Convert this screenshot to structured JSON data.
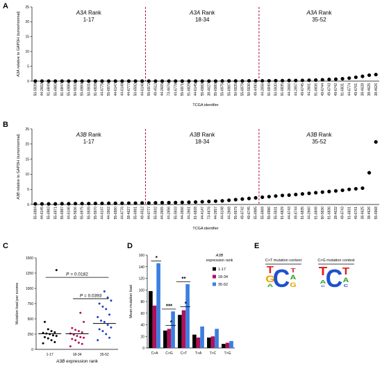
{
  "figure": {
    "panel_labels": [
      "A",
      "B",
      "C",
      "D",
      "E"
    ]
  },
  "chart_data": [
    {
      "id": "A",
      "type": "scatter",
      "ylabel_gene": "A3A",
      "ylabel_rest": " relative to GAPDH (tumor/normal)",
      "xlabel": "TCGA identifier",
      "ylim": [
        0,
        25
      ],
      "yticks": [
        0,
        5,
        10,
        15,
        20,
        25
      ],
      "x": [
        "50-5939",
        "44-2662",
        "91-6849",
        "55-6983",
        "91-6847",
        "55-6986",
        "50-5932",
        "55-6984",
        "50-5931",
        "91-6828",
        "44-6775",
        "55-6970",
        "44-6147",
        "44-6148",
        "44-6777",
        "50-6592",
        "44-6146",
        "55-6972",
        "49-4512",
        "44-2665",
        "73-4676",
        "44-6778",
        "55-6971",
        "91-6829",
        "44-6145",
        "55-6982",
        "38-4627",
        "55-6980",
        "55-6975",
        "55-6987",
        "50-5935",
        "55-6979",
        "50-5936",
        "49-4490",
        "44-2656",
        "91-6840",
        "50-5930",
        "91-6835",
        "44-2666",
        "44-2657",
        "49-6745",
        "44-2661",
        "91-6836",
        "49-6744",
        "49-6743",
        "49-6742",
        "91-6831",
        "44-6774",
        "49-6761",
        "38-4628",
        "38-4625",
        "38-4626"
      ],
      "y": [
        0.0,
        0.0,
        0.0,
        0.0,
        0.0,
        0.0,
        0.0,
        0.0,
        0.0,
        0.0,
        0.0,
        0.0,
        0.0,
        0.0,
        0.0,
        0.0,
        0.0,
        0.0,
        0.0,
        0.0,
        0.0,
        0.0,
        0.0,
        0.0,
        0.0,
        0.0,
        0.0,
        0.0,
        0.05,
        0.05,
        0.05,
        0.05,
        0.1,
        0.1,
        0.1,
        0.1,
        0.15,
        0.15,
        0.2,
        0.2,
        0.25,
        0.3,
        0.35,
        0.45,
        0.55,
        0.65,
        0.8,
        1.0,
        1.3,
        1.6,
        2.0,
        2.2
      ],
      "groups": [
        {
          "gene": "A3A",
          "label": " Rank",
          "range": "1-17"
        },
        {
          "gene": "A3A",
          "label": " Rank",
          "range": "18-34"
        },
        {
          "gene": "A3A",
          "label": " Rank",
          "range": "35-52"
        }
      ],
      "dividers_after_index": [
        16,
        33
      ]
    },
    {
      "id": "B",
      "type": "scatter",
      "ylabel_gene": "A3B",
      "ylabel_rest": " relative to GAPDH (tumor/normal)",
      "xlabel": "TCGA identifier",
      "ylim": [
        0,
        25
      ],
      "yticks": [
        0,
        5,
        10,
        15,
        20,
        25
      ],
      "x": [
        "55-6984",
        "44-6145",
        "55-6983",
        "55-6971",
        "55-6987",
        "44-6146",
        "55-5936",
        "55-6975",
        "55-5939",
        "55-5970",
        "44-6147",
        "44-2662",
        "55-6980",
        "44-6776",
        "38-4627",
        "55-6981",
        "49-4512",
        "44-6777",
        "55-5932",
        "44-2665",
        "44-2656",
        "55-5933",
        "44-2666",
        "44-2661",
        "91-6828",
        "44-4147",
        "73-4676",
        "44-2657",
        "44-6148",
        "44-2668",
        "55-6979",
        "49-6742",
        "49-6745",
        "55-6985",
        "55-6969",
        "55-6986",
        "55-5931",
        "91-6829",
        "44-6743",
        "49-6744",
        "91-6835",
        "44-2660",
        "91-6849",
        "50-5930",
        "91-6836",
        "38-4632",
        "49-6743",
        "91-6831",
        "49-6761",
        "38-4625",
        "38-4626",
        "55-6968"
      ],
      "y": [
        0.2,
        0.2,
        0.2,
        0.2,
        0.25,
        0.25,
        0.3,
        0.3,
        0.3,
        0.35,
        0.35,
        0.4,
        0.4,
        0.4,
        0.45,
        0.45,
        0.5,
        0.5,
        0.55,
        0.6,
        0.6,
        0.65,
        0.7,
        0.75,
        0.8,
        0.9,
        1.0,
        1.1,
        1.2,
        1.4,
        1.6,
        1.8,
        2.0,
        2.2,
        2.4,
        2.6,
        2.8,
        3.0,
        3.1,
        3.3,
        3.5,
        3.7,
        3.9,
        4.1,
        4.3,
        4.5,
        4.7,
        5.0,
        5.2,
        5.4,
        10.5,
        20.7
      ],
      "groups": [
        {
          "gene": "A3B",
          "label": " Rank",
          "range": "1-17"
        },
        {
          "gene": "A3B",
          "label": " Rank",
          "range": "18-34"
        },
        {
          "gene": "A3B",
          "label": " Rank",
          "range": "35-52"
        }
      ],
      "dividers_after_index": [
        16,
        33
      ]
    },
    {
      "id": "C",
      "type": "scatter",
      "ylabel": "Mutation load per exome",
      "xlabel_gene": "A3B",
      "xlabel_rest": " expression rank",
      "ylim": [
        0,
        1500
      ],
      "yticks": [
        0,
        250,
        500,
        750,
        1000,
        1250,
        1500
      ],
      "categories": [
        "1-17",
        "18-34",
        "35-52"
      ],
      "colors": [
        "#000000",
        "#b0105a",
        "#1f3fbf"
      ],
      "points": [
        [
          100,
          120,
          150,
          180,
          200,
          220,
          230,
          250,
          260,
          270,
          280,
          300,
          330,
          450,
          1300
        ],
        [
          50,
          90,
          110,
          150,
          170,
          190,
          200,
          220,
          240,
          260,
          280,
          300,
          320,
          350,
          450,
          600
        ],
        [
          150,
          190,
          250,
          300,
          330,
          360,
          400,
          450,
          470,
          530,
          570,
          660,
          700,
          750,
          800,
          850,
          950
        ]
      ],
      "means": [
        255,
        255,
        425
      ],
      "comparisons": [
        {
          "from": 0,
          "to": 2,
          "p_prefix": "P",
          "p_value": " = 0.0182",
          "y": 1180
        },
        {
          "from": 1,
          "to": 2,
          "p_prefix": "P",
          "p_value": " = 0.0393",
          "y": 830
        }
      ]
    },
    {
      "id": "D",
      "type": "bar",
      "ylabel": "Mean mutation load",
      "ylim": [
        0,
        160
      ],
      "yticks": [
        0,
        20,
        40,
        60,
        80,
        100,
        120,
        140,
        160
      ],
      "categories": [
        "C>A",
        "C>G",
        "C>T",
        "T>A",
        "T>C",
        "T>G"
      ],
      "legend_title_gene": "A3B",
      "legend_title_rest": "expression rank",
      "series": [
        {
          "name": "1-17",
          "color": "#000000",
          "values": [
            98,
            30,
            57,
            23,
            18,
            7
          ]
        },
        {
          "name": "18-34",
          "color": "#b0105a",
          "values": [
            73,
            33,
            65,
            18,
            20,
            9
          ]
        },
        {
          "name": "35-52",
          "color": "#3b7fe0",
          "values": [
            146,
            63,
            110,
            37,
            33,
            12
          ]
        }
      ],
      "significance": [
        {
          "category": 0,
          "from_series": 1,
          "to_series": 2,
          "stars": "*"
        },
        {
          "category": 1,
          "from_series": 0,
          "to_series": 2,
          "stars": "***"
        },
        {
          "category": 1,
          "from_series": 1,
          "to_series": 2,
          "stars": "*"
        },
        {
          "category": 2,
          "from_series": 0,
          "to_series": 2,
          "stars": "**"
        },
        {
          "category": 2,
          "from_series": 1,
          "to_series": 2,
          "stars": "*"
        }
      ]
    }
  ],
  "logos": [
    {
      "title": "C>T mutation context"
    },
    {
      "title": "C>G mutation context"
    }
  ]
}
